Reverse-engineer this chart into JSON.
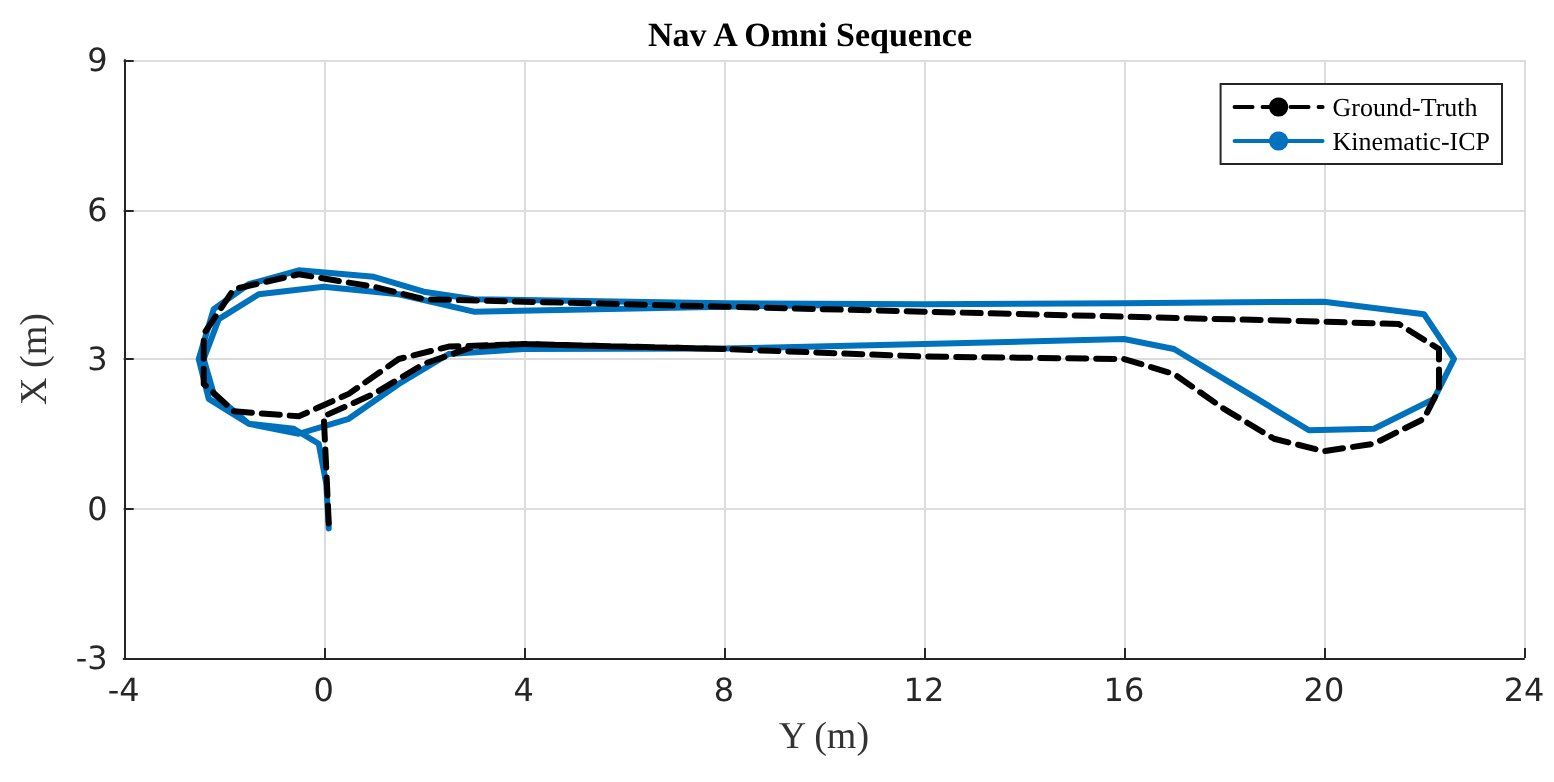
{
  "chart_data": {
    "type": "line",
    "title": "Nav A Omni Sequence",
    "xlabel": "Y (m)",
    "ylabel": "X (m)",
    "xlim": [
      -4,
      24
    ],
    "xticks": [
      -4,
      0,
      4,
      8,
      12,
      16,
      20,
      24
    ],
    "ylim": [
      -3,
      9
    ],
    "yticks": [
      -3,
      0,
      3,
      6,
      9
    ],
    "grid": true,
    "legend": "top right",
    "marker": "none",
    "series": [
      {
        "name": "Ground-Truth",
        "color": "#000000",
        "line_style": "dashed",
        "x": [
          0.1,
          0.05,
          0,
          1,
          2,
          3,
          4,
          8,
          12,
          16,
          17,
          18,
          19,
          20,
          21,
          22,
          22.3,
          22.3,
          21.5,
          20,
          16,
          12,
          8,
          4,
          2,
          1,
          -0.5,
          -1.8,
          -2.4,
          -2.4,
          -1.8,
          -0.5,
          0.5,
          1.5,
          2.5,
          4,
          8
        ],
        "values": [
          -0.3,
          0.8,
          1.85,
          2.3,
          2.9,
          3.25,
          3.3,
          3.2,
          3.05,
          3.0,
          2.7,
          2.0,
          1.4,
          1.15,
          1.3,
          1.8,
          2.4,
          3.2,
          3.7,
          3.75,
          3.85,
          3.95,
          4.05,
          4.15,
          4.2,
          4.45,
          4.7,
          4.4,
          3.5,
          2.5,
          1.95,
          1.85,
          2.3,
          3.0,
          3.25,
          3.3,
          3.2
        ]
      },
      {
        "name": "Kinematic-ICP",
        "color": "#0072bd",
        "line_style": "solid",
        "x": [
          0.1,
          0.05,
          -0.1,
          -0.6,
          -1.5,
          -2.3,
          -2.5,
          -2.2,
          -1.5,
          -0.5,
          1,
          2,
          3,
          8,
          12,
          16,
          20,
          22,
          22.6,
          22.2,
          21,
          19.7,
          18.5,
          17,
          16,
          12,
          8,
          4,
          2.5,
          1.5,
          0.5,
          -0.5,
          -1.5,
          -2.2,
          -2.4,
          -2.1,
          -1.3,
          0,
          1.5,
          3,
          8,
          10
        ],
        "values": [
          -0.4,
          0.5,
          1.3,
          1.6,
          1.7,
          2.2,
          3.0,
          4.0,
          4.5,
          4.78,
          4.65,
          4.35,
          4.2,
          4.12,
          4.1,
          4.12,
          4.15,
          3.9,
          3.0,
          2.2,
          1.6,
          1.57,
          2.3,
          3.2,
          3.4,
          3.3,
          3.21,
          3.2,
          3.1,
          2.5,
          1.8,
          1.5,
          1.7,
          2.3,
          3.0,
          3.8,
          4.3,
          4.45,
          4.3,
          3.95,
          4.05,
          4.08
        ]
      }
    ]
  }
}
